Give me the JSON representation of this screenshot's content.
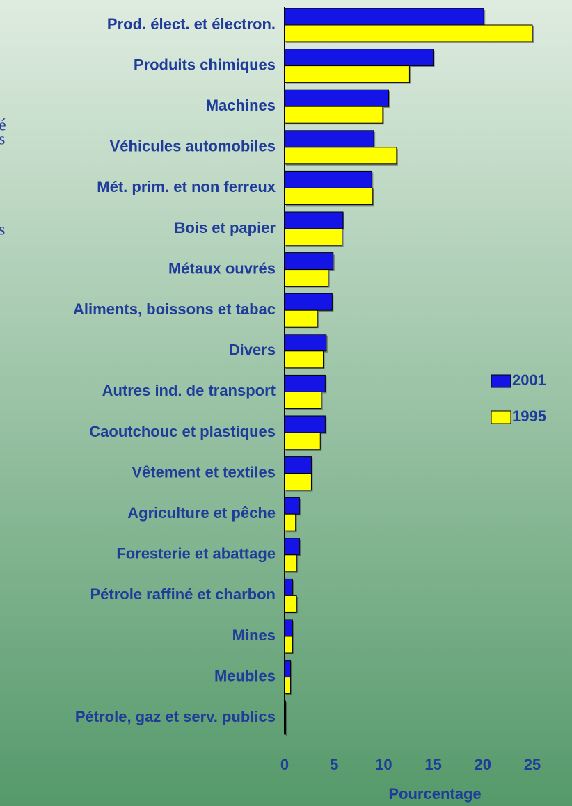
{
  "chart_data": {
    "type": "barh",
    "annotations": [
      "é",
      "s",
      "s"
    ],
    "categories": [
      "Prod. élect. et électron.",
      "Produits chimiques",
      "Machines",
      "Véhicules automobiles",
      "Mét. prim. et non ferreux",
      "Bois et papier",
      "Métaux ouvrés",
      "Aliments, boissons et tabac",
      "Divers",
      "Autres ind. de transport",
      "Caoutchouc et plastiques",
      "Vêtement et textiles",
      "Agriculture et pêche",
      "Foresterie et abattage",
      "Pétrole raffiné et charbon",
      "Mines",
      "Meubles",
      "Pétrole, gaz et serv. publics"
    ],
    "series": [
      {
        "name": "2001",
        "color": "#1414e6",
        "values": [
          20.1,
          15.0,
          10.5,
          9.0,
          8.8,
          5.9,
          4.9,
          4.8,
          4.2,
          4.1,
          4.1,
          2.7,
          1.5,
          1.5,
          0.8,
          0.8,
          0.6,
          0.1
        ]
      },
      {
        "name": "1995",
        "color": "#ffff00",
        "values": [
          25.0,
          12.6,
          9.9,
          11.3,
          8.9,
          5.8,
          4.4,
          3.3,
          3.9,
          3.7,
          3.6,
          2.7,
          1.1,
          1.2,
          1.2,
          0.8,
          0.6,
          0.1
        ]
      }
    ],
    "xlim": [
      0,
      25
    ],
    "xticks": [
      0,
      5,
      10,
      15,
      20,
      25
    ],
    "xlabel": "Pourcentage",
    "legend": "right"
  }
}
